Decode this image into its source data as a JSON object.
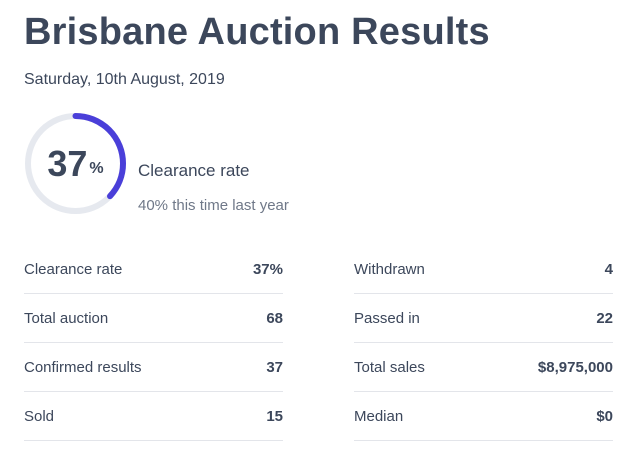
{
  "header": {
    "title": "Brisbane Auction Results",
    "date": "Saturday, 10th August, 2019"
  },
  "gauge": {
    "value_label": "37",
    "unit": "%",
    "fraction": 0.37,
    "track_color": "#e6e9ef",
    "fill_color": "#4a3fd9",
    "label": "Clearance rate",
    "comparison": "40% this time last year"
  },
  "stats_left": [
    {
      "label": "Clearance rate",
      "value": "37%"
    },
    {
      "label": "Total auction",
      "value": "68"
    },
    {
      "label": "Confirmed results",
      "value": "37"
    },
    {
      "label": "Sold",
      "value": "15"
    }
  ],
  "stats_right": [
    {
      "label": "Withdrawn",
      "value": "4"
    },
    {
      "label": "Passed in",
      "value": "22"
    },
    {
      "label": "Total sales",
      "value": "$8,975,000"
    },
    {
      "label": "Median",
      "value": "$0"
    }
  ]
}
